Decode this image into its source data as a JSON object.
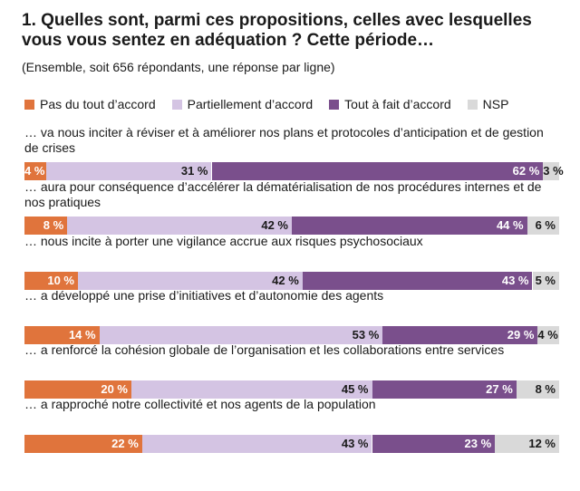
{
  "title": "1. Quelles sont, parmi ces propositions, celles avec lesquelles vous vous sentez en adéquation ? Cette période…",
  "subtitle": "(Ensemble, soit 656 répondants, une réponse par ligne)",
  "colors": {
    "pas_du_tout": "#e0743c",
    "partiellement": "#d4c4e3",
    "tout_a_fait": "#7a4f8c",
    "nsp": "#d9d9d9"
  },
  "chart_data": {
    "type": "bar",
    "orientation": "horizontal",
    "stacked": true,
    "title": "1. Quelles sont, parmi ces propositions, celles avec lesquelles vous vous sentez en adéquation ? Cette période…",
    "subtitle": "(Ensemble, soit 656 répondants, une réponse par ligne)",
    "legend_position": "top",
    "unit": "%",
    "series": [
      {
        "key": "pas_du_tout",
        "name": "Pas du tout d’accord",
        "values": [
          4,
          8,
          10,
          14,
          20,
          22
        ]
      },
      {
        "key": "partiellement",
        "name": "Partiellement d’accord",
        "values": [
          31,
          42,
          42,
          53,
          45,
          43
        ]
      },
      {
        "key": "tout_a_fait",
        "name": "Tout à fait d’accord",
        "values": [
          62,
          44,
          43,
          29,
          27,
          23
        ]
      },
      {
        "key": "nsp",
        "name": "NSP",
        "values": [
          3,
          6,
          5,
          4,
          8,
          12
        ]
      }
    ],
    "categories": [
      "… va nous inciter à réviser et à améliorer nos plans et protocoles d’anticipation et de gestion de crises",
      "… aura pour conséquence d’accélérer la dématérialisation de nos procédures internes et de nos pratiques",
      "… nous incite à porter une vigilance accrue aux risques psychosociaux",
      "… a développé une prise d’initiatives et d’autonomie des agents",
      "… a renforcé la cohésion globale de l’organisation et les collaborations entre services",
      "… a rapproché notre collectivité et nos agents de la population"
    ]
  }
}
